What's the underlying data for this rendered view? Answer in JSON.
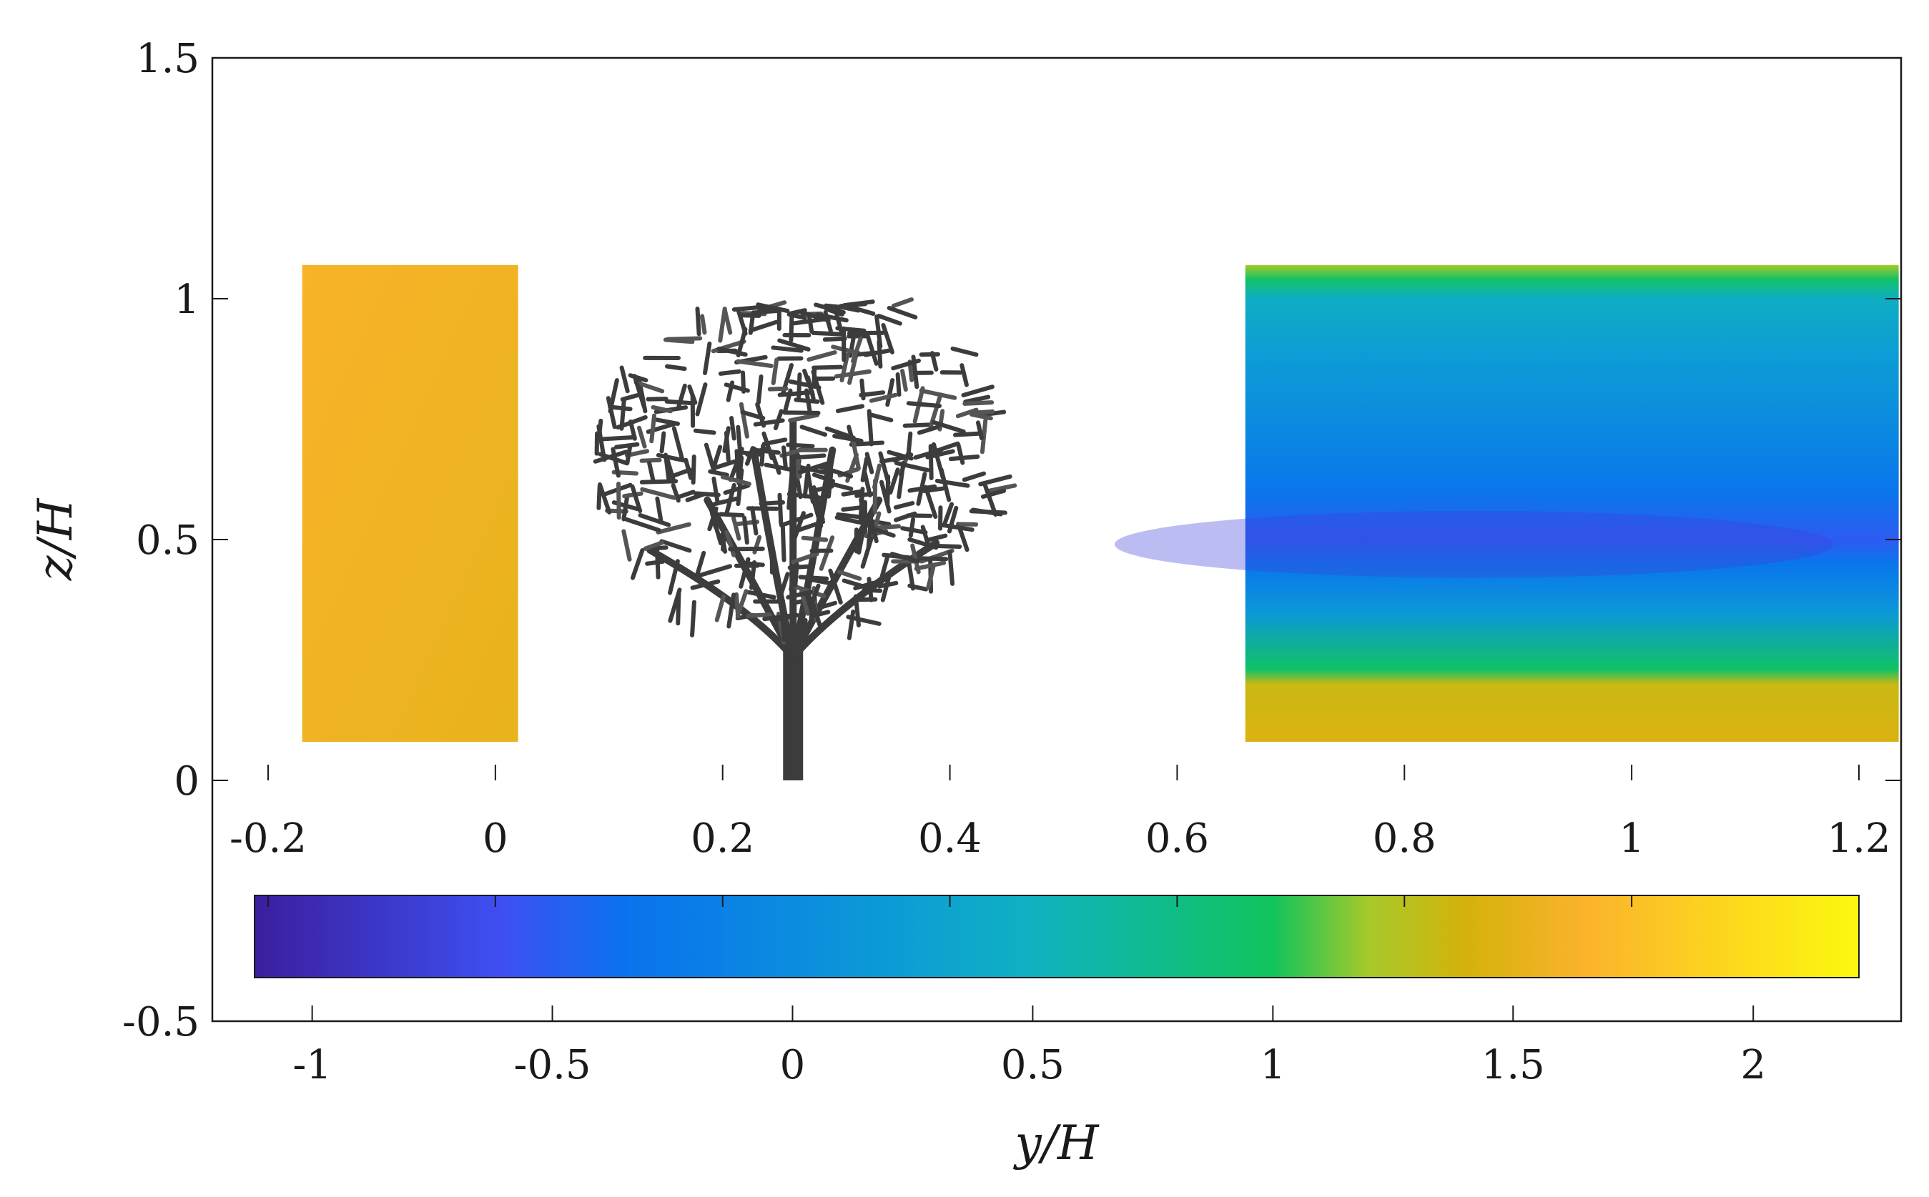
{
  "chart_data": {
    "type": "heatmap",
    "title": "",
    "xlabel": "y/H",
    "ylabel": "z/H",
    "grid": false,
    "main_axes": {
      "xlim": [
        -0.2,
        1.2
      ],
      "ylim": [
        -0.5,
        1.5
      ],
      "yticks": [
        -0.5,
        0,
        0.5,
        1,
        1.5
      ],
      "ytick_labels": [
        "-0.5",
        "0",
        "0.5",
        "1",
        "1.5"
      ],
      "xticks": [
        -1,
        -0.5,
        0,
        0.5,
        1,
        1.5,
        2
      ],
      "xtick_labels": [
        "-1",
        "-0.5",
        "0",
        "0.5",
        "1",
        "1.5",
        "2"
      ]
    },
    "inner_axis": {
      "xticks": [
        -0.2,
        0,
        0.2,
        0.4,
        0.6,
        0.8,
        1,
        1.2
      ],
      "xtick_labels": [
        "-0.2",
        "0",
        "0.2",
        "0.4",
        "0.6",
        "0.8",
        "1",
        "1.2"
      ]
    },
    "colorbar": {
      "orientation": "horizontal",
      "range": [
        -1.12,
        2.22
      ],
      "colormap": "parula",
      "stops": [
        {
          "value": -1.12,
          "color": "#3b1f9e"
        },
        {
          "value": -0.6,
          "color": "#3e50f2"
        },
        {
          "value": -0.35,
          "color": "#0a72ee"
        },
        {
          "value": 0.2,
          "color": "#0c9bd6"
        },
        {
          "value": 0.5,
          "color": "#10b1c1"
        },
        {
          "value": 1.0,
          "color": "#10c45c"
        },
        {
          "value": 1.2,
          "color": "#a7c92a"
        },
        {
          "value": 1.4,
          "color": "#d4b20b"
        },
        {
          "value": 1.65,
          "color": "#fbb32c"
        },
        {
          "value": 2.22,
          "color": "#fcf80f"
        }
      ]
    },
    "regions": [
      {
        "name": "upstream",
        "y_range": [
          -0.17,
          0.02
        ],
        "z_range": [
          0.08,
          1.07
        ],
        "value": 1.58
      },
      {
        "name": "downstream",
        "y_range": [
          0.66,
          1.235
        ],
        "z_range": [
          0.08,
          1.07
        ],
        "profile": [
          {
            "z": 0.08,
            "value": 1.45
          },
          {
            "z": 0.2,
            "value": 1.35
          },
          {
            "z": 0.23,
            "value": 0.95
          },
          {
            "z": 0.35,
            "value": 0.15
          },
          {
            "z": 0.45,
            "value": -0.3
          },
          {
            "z": 0.5,
            "value": -0.52
          },
          {
            "z": 0.6,
            "value": -0.3
          },
          {
            "z": 0.75,
            "value": 0.0
          },
          {
            "z": 0.9,
            "value": 0.25
          },
          {
            "z": 1.0,
            "value": 0.45
          },
          {
            "z": 1.04,
            "value": 0.95
          },
          {
            "z": 1.07,
            "value": 1.2
          }
        ]
      }
    ],
    "tree": {
      "y_center": 0.262,
      "trunk_z": [
        0,
        0.3
      ],
      "crown_z": [
        0.3,
        1.0
      ],
      "crown_y": [
        0.08,
        0.445
      ],
      "color": "#3c3c3c"
    }
  }
}
